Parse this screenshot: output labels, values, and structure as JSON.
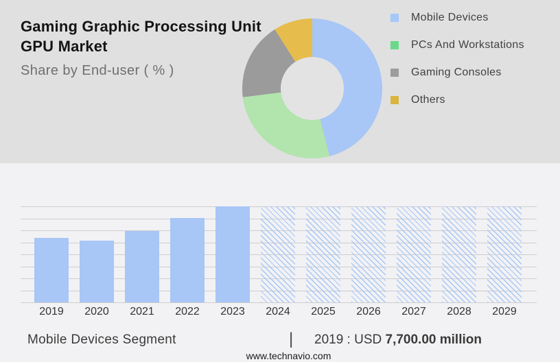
{
  "header": {
    "title_lines": [
      "Gaming Graphic Processing Unit",
      "GPU Market"
    ],
    "subtitle": "Share by End-user ( % )"
  },
  "legend": {
    "items": [
      {
        "label": "Mobile Devices",
        "color": "#A5C8F9"
      },
      {
        "label": "PCs And Workstations",
        "color": "#69D987"
      },
      {
        "label": "Gaming Consoles",
        "color": "#9D9D9D"
      },
      {
        "label": "Others",
        "color": "#D9B540"
      }
    ]
  },
  "chart_data": [
    {
      "type": "pie",
      "subtype": "donut",
      "title": "Share by End-user ( % )",
      "labels": [
        "Mobile Devices",
        "PCs And Workstations",
        "Gaming Consoles",
        "Others"
      ],
      "values_pct": [
        46,
        27,
        18,
        9
      ],
      "colors": [
        "#A8C6F6",
        "#B2E4AE",
        "#9B9B9B",
        "#E6BC4C"
      ],
      "start_angle_deg": 0,
      "direction": "clockwise",
      "legend_position": "right"
    },
    {
      "type": "bar",
      "categories": [
        "2019",
        "2020",
        "2021",
        "2022",
        "2023",
        "2024",
        "2025",
        "2026",
        "2027",
        "2028",
        "2029"
      ],
      "height_fractions": [
        0.67,
        0.645,
        0.74,
        0.875,
        1.0,
        1.0,
        1.0,
        1.0,
        1.0,
        1.0,
        1.0
      ],
      "styles": [
        "solid",
        "solid",
        "solid",
        "solid",
        "solid",
        "hatched",
        "hatched",
        "hatched",
        "hatched",
        "hatched",
        "hatched"
      ],
      "values_est_usd_million": [
        7700,
        7400,
        8500,
        10000,
        11500,
        null,
        null,
        null,
        null,
        null,
        null
      ],
      "bar_color": "#A8C6F6",
      "known_values": {
        "2019": "USD 7,700.00 million"
      },
      "xlabel": "",
      "ylabel": "",
      "grid": true,
      "y_axis_labels": false,
      "note": "2024-2029 shown as full-height diagonal-hatch forecast placeholders"
    }
  ],
  "footer": {
    "segment_label": "Mobile Devices Segment",
    "separator": "|",
    "value_prefix": "2019 : USD ",
    "value_bold": "7,700.00 million",
    "website": "www.technavio.com"
  }
}
